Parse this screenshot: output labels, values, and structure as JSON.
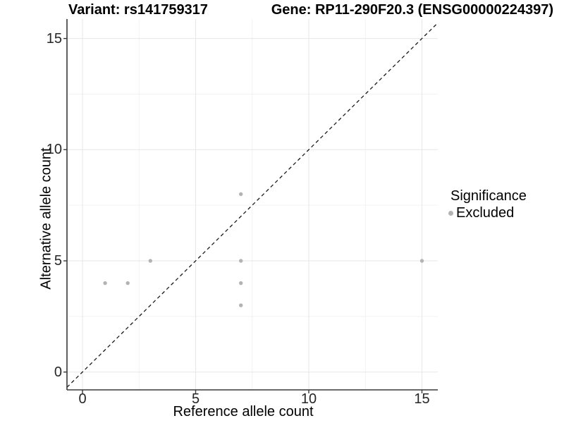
{
  "header": {
    "variant_title": "Variant: rs141759317",
    "gene_title": "Gene: RP11-290F20.3 (ENSG00000224397)"
  },
  "chart_data": {
    "type": "scatter",
    "xlabel": "Reference allele count",
    "ylabel": "Alternative allele count",
    "x_ticks": [
      0,
      5,
      10,
      15
    ],
    "y_ticks": [
      0,
      5,
      10,
      15
    ],
    "x_minor_ticks": [
      2.5,
      7.5,
      12.5
    ],
    "y_minor_ticks": [
      2.5,
      7.5,
      12.5
    ],
    "xlim": [
      -0.7,
      15.7
    ],
    "ylim": [
      -0.8,
      15.9
    ],
    "grid": "major+minor",
    "identity_line": {
      "equation": "y = x",
      "style": "dashed",
      "color": "#1a1a1a"
    },
    "series": [
      {
        "name": "Excluded",
        "color": "#b3b3b3",
        "points": [
          [
            1,
            4
          ],
          [
            2,
            4
          ],
          [
            3,
            5
          ],
          [
            7,
            3
          ],
          [
            7,
            4
          ],
          [
            7,
            5
          ],
          [
            7,
            8
          ],
          [
            15,
            5
          ]
        ]
      }
    ],
    "legend": {
      "title": "Significance",
      "position": "right",
      "items": [
        {
          "label": "Excluded",
          "color": "#b3b3b3"
        }
      ]
    }
  },
  "colors": {
    "point": "#b3b3b3",
    "grid_major": "#e7e7e7",
    "grid_minor": "#f2f2f2",
    "axis": "#383838",
    "tick_text": "#262626"
  }
}
